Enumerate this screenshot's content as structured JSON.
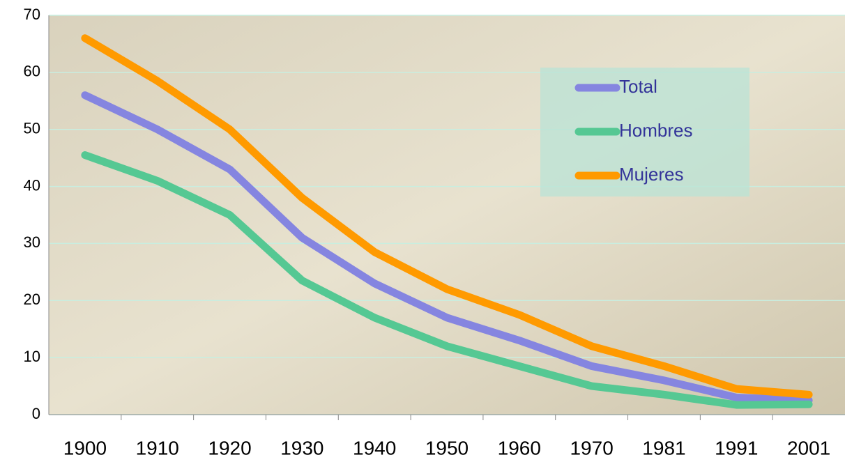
{
  "chart_data": {
    "type": "line",
    "categories": [
      "1900",
      "1910",
      "1920",
      "1930",
      "1940",
      "1950",
      "1960",
      "1970",
      "1981",
      "1991",
      "2001"
    ],
    "series": [
      {
        "name": "Total",
        "color": "#8585e0",
        "values": [
          56,
          50,
          43,
          31,
          23,
          17,
          13,
          8.5,
          6,
          3,
          2.5
        ]
      },
      {
        "name": "Hombres",
        "color": "#55c893",
        "values": [
          45.5,
          41,
          35,
          23.5,
          17,
          12,
          8.5,
          5,
          3.5,
          1.7,
          1.8
        ]
      },
      {
        "name": "Mujeres",
        "color": "#ff9a00",
        "values": [
          66,
          58.5,
          50,
          38,
          28.5,
          22,
          17.5,
          12,
          8.5,
          4.5,
          3.5
        ]
      }
    ],
    "ylim": [
      0,
      70
    ],
    "yticks": [
      0,
      10,
      20,
      30,
      40,
      50,
      60,
      70
    ],
    "grid": true
  }
}
